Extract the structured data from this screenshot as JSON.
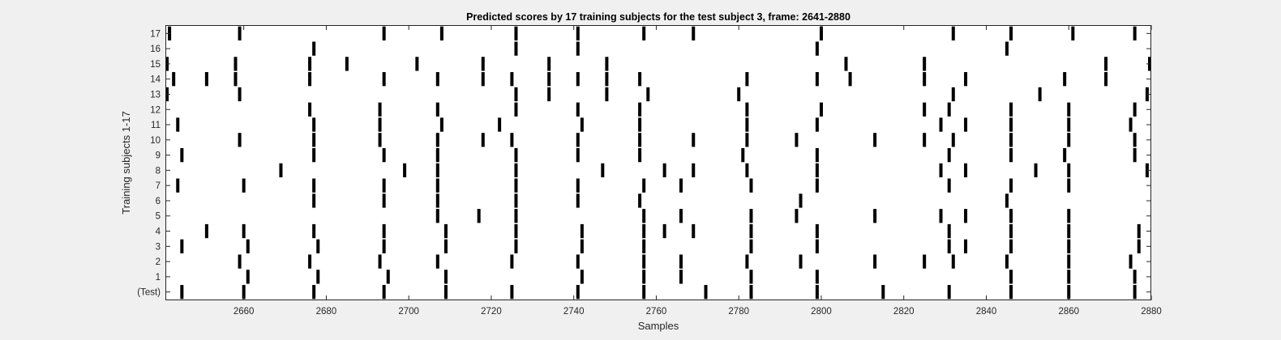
{
  "chart_data": {
    "type": "raster",
    "title": "Predicted scores by 17 training subjects for the test subject 3, frame: 2641-2880",
    "xlabel": "Samples",
    "ylabel": "Training subjects 1-17",
    "xlim": [
      2641,
      2880
    ],
    "xticks": [
      2660,
      2680,
      2700,
      2720,
      2740,
      2760,
      2780,
      2800,
      2820,
      2840,
      2860,
      2880
    ],
    "ytick_labels": [
      "(Test)",
      "1",
      "2",
      "3",
      "4",
      "5",
      "6",
      "7",
      "8",
      "9",
      "10",
      "11",
      "12",
      "13",
      "14",
      "15",
      "16",
      "17"
    ],
    "mark_color": "#000000",
    "rows": [
      {
        "label": "(Test)",
        "events": [
          2645,
          2660,
          2677,
          2694,
          2709,
          2725,
          2741,
          2757,
          2772,
          2783,
          2799,
          2815,
          2831,
          2846,
          2860,
          2876
        ]
      },
      {
        "label": "1",
        "events": [
          2661,
          2678,
          2695,
          2709,
          2742,
          2757,
          2766,
          2783,
          2799,
          2846,
          2860,
          2876
        ]
      },
      {
        "label": "2",
        "events": [
          2659,
          2676,
          2693,
          2707,
          2725,
          2741,
          2757,
          2766,
          2782,
          2795,
          2813,
          2825,
          2832,
          2845,
          2860,
          2875
        ]
      },
      {
        "label": "3",
        "events": [
          2645,
          2661,
          2678,
          2694,
          2709,
          2726,
          2742,
          2757,
          2783,
          2799,
          2831,
          2835,
          2846,
          2860,
          2877
        ]
      },
      {
        "label": "4",
        "events": [
          2651,
          2660,
          2677,
          2694,
          2709,
          2726,
          2742,
          2757,
          2762,
          2769,
          2783,
          2799,
          2831,
          2846,
          2860,
          2877
        ]
      },
      {
        "label": "5",
        "events": [
          2707,
          2717,
          2726,
          2757,
          2766,
          2783,
          2794,
          2813,
          2829,
          2835,
          2846,
          2860
        ]
      },
      {
        "label": "6",
        "events": [
          2677,
          2694,
          2707,
          2726,
          2741,
          2756,
          2795,
          2845
        ]
      },
      {
        "label": "7",
        "events": [
          2644,
          2660,
          2677,
          2694,
          2707,
          2726,
          2741,
          2757,
          2766,
          2783,
          2799,
          2831,
          2846,
          2860
        ]
      },
      {
        "label": "8",
        "events": [
          2669,
          2699,
          2707,
          2726,
          2747,
          2762,
          2769,
          2782,
          2799,
          2829,
          2835,
          2852,
          2860,
          2879
        ]
      },
      {
        "label": "9",
        "events": [
          2645,
          2677,
          2694,
          2707,
          2726,
          2741,
          2756,
          2781,
          2799,
          2831,
          2846,
          2859,
          2876
        ]
      },
      {
        "label": "10",
        "events": [
          2659,
          2677,
          2693,
          2707,
          2718,
          2725,
          2741,
          2756,
          2769,
          2782,
          2794,
          2813,
          2825,
          2832,
          2846,
          2860,
          2876
        ]
      },
      {
        "label": "11",
        "events": [
          2644,
          2677,
          2693,
          2708,
          2722,
          2742,
          2756,
          2782,
          2799,
          2829,
          2835,
          2846,
          2860,
          2875
        ]
      },
      {
        "label": "12",
        "events": [
          2676,
          2693,
          2707,
          2726,
          2741,
          2756,
          2782,
          2800,
          2825,
          2831,
          2846,
          2860,
          2876
        ]
      },
      {
        "label": "13",
        "events": [
          2641,
          2659,
          2726,
          2734,
          2748,
          2758,
          2780,
          2832,
          2853,
          2879
        ]
      },
      {
        "label": "14",
        "events": [
          2643,
          2651,
          2658,
          2676,
          2694,
          2707,
          2718,
          2725,
          2734,
          2741,
          2748,
          2756,
          2782,
          2799,
          2807,
          2825,
          2835,
          2859,
          2869
        ]
      },
      {
        "label": "15",
        "events": [
          2641,
          2658,
          2676,
          2685,
          2702,
          2718,
          2734,
          2748,
          2806,
          2825,
          2869,
          2880
        ]
      },
      {
        "label": "16",
        "events": [
          2677,
          2726,
          2741,
          2799,
          2845
        ]
      },
      {
        "label": "17",
        "events": [
          2642,
          2659,
          2694,
          2708,
          2726,
          2741,
          2757,
          2769,
          2800,
          2832,
          2846,
          2861,
          2876
        ]
      }
    ]
  }
}
